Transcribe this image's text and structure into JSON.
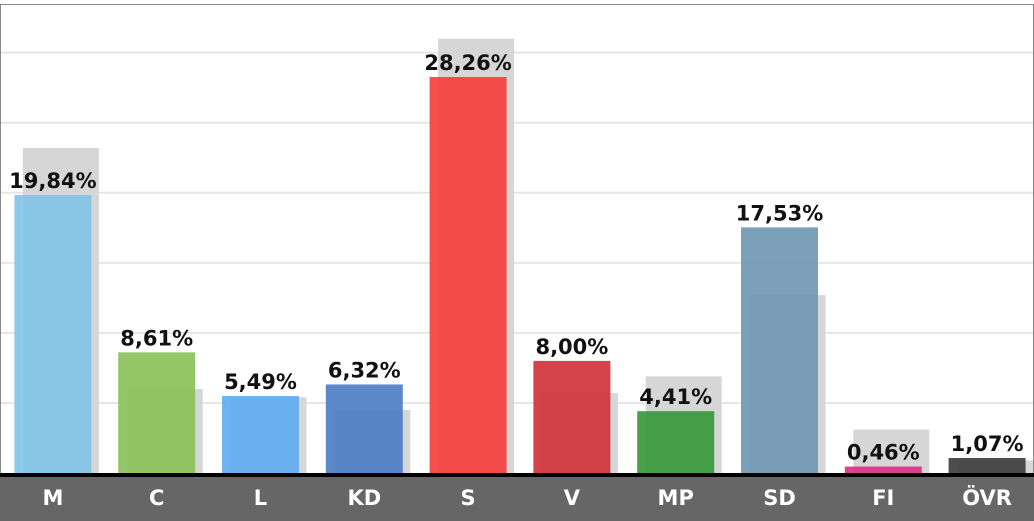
{
  "chart_data": {
    "type": "bar",
    "categories": [
      "M",
      "C",
      "L",
      "KD",
      "S",
      "V",
      "MP",
      "SD",
      "FI",
      "ÖVR"
    ],
    "series": [
      {
        "color": "#d6d6d6",
        "values": [
          23.2,
          6.0,
          5.4,
          4.5,
          31.0,
          5.7,
          6.9,
          12.7,
          3.1,
          0.9
        ]
      },
      {
        "colors": [
          "#83c5e6",
          "#8cc25a",
          "#62acf0",
          "#4f7fc6",
          "#f53f3f",
          "#cf363c",
          "#3a9a3c",
          "#7298b5",
          "#d9358a",
          "#3f3f3f"
        ],
        "values": [
          19.84,
          8.61,
          5.49,
          6.32,
          28.26,
          8.0,
          4.41,
          17.53,
          0.46,
          1.07
        ],
        "value_labels": [
          "19,84%",
          "8,61%",
          "5,49%",
          "6,32%",
          "28,26%",
          "8,00%",
          "4,41%",
          "17,53%",
          "0,46%",
          "1,07%"
        ]
      }
    ],
    "ylim": [
      0,
      33.4
    ],
    "yticks": [
      5,
      10,
      15,
      20,
      25,
      30
    ],
    "grid": true
  }
}
